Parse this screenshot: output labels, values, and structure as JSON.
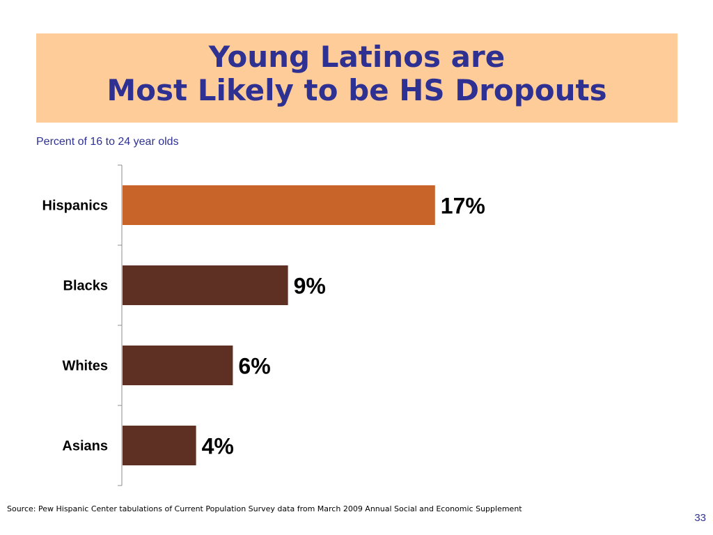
{
  "slide": {
    "title_line1": "Young Latinos are",
    "title_line2": "Most Likely to be HS Dropouts",
    "subtitle": "Percent of 16 to 24 year olds",
    "source": "Source: Pew Hispanic Center tabulations of Current Population Survey data from March 2009 Annual Social and Economic Supplement",
    "page_number": "33"
  },
  "colors": {
    "title_bg": "#fdcc99",
    "title_text": "#2e3192",
    "highlight_bar": "#c8642a",
    "bar": "#5e2f23"
  },
  "chart_data": {
    "type": "bar",
    "orientation": "horizontal",
    "categories": [
      "Hispanics",
      "Blacks",
      "Whites",
      "Asians"
    ],
    "values": [
      17,
      9,
      6,
      4
    ],
    "data_labels": [
      "17%",
      "9%",
      "6%",
      "4%"
    ],
    "unit": "%",
    "xlim": [
      0,
      20
    ],
    "grid": false,
    "legend": "none",
    "highlight_category": "Hispanics"
  }
}
